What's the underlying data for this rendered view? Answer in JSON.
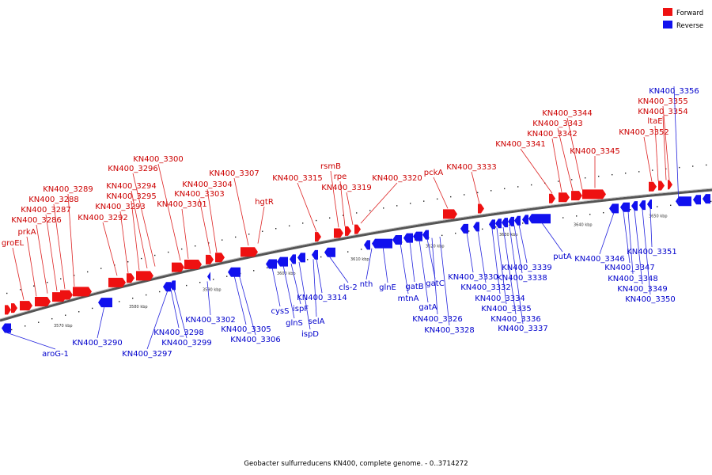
{
  "colors": {
    "forward": "#ee1111",
    "reverse": "#1111ee",
    "forward_text": "#cc0000",
    "reverse_text": "#0000cc",
    "backbone": "#777777"
  },
  "legend": {
    "forward": "Forward",
    "reverse": "Reverse"
  },
  "caption": "Geobacter sulfurreducens KN400, complete genome. - 0..3714272",
  "scale_ticks": [
    "3570 kbp",
    "3580 kbp",
    "3590 kbp",
    "3600 kbp",
    "3610 kbp",
    "3620 kbp",
    "3630 kbp",
    "3640 kbp",
    "3650 kbp"
  ],
  "forward_genes": [
    "groEL",
    "prkA",
    "KN400_3286",
    "KN400_3287",
    "KN400_3288",
    "KN400_3289",
    "KN400_3292",
    "KN400_3293",
    "KN400_3295",
    "KN400_3294",
    "KN400_3296",
    "KN400_3300",
    "KN400_3301",
    "KN400_3303",
    "KN400_3304",
    "KN400_3307",
    "hgtR",
    "KN400_3315",
    "rsmB",
    "rpe",
    "KN400_3319",
    "KN400_3320",
    "pckA",
    "KN400_3333",
    "KN400_3341",
    "KN400_3342",
    "KN400_3343",
    "KN400_3344",
    "KN400_3345",
    "KN400_3352",
    "ltaE",
    "KN400_3354",
    "KN400_3355"
  ],
  "reverse_genes": [
    "aroG-1",
    "KN400_3290",
    "KN400_3297",
    "KN400_3298",
    "KN400_3299",
    "KN400_3302",
    "KN400_3305",
    "KN400_3306",
    "cysS",
    "glnS",
    "ispF",
    "ispD",
    "selA",
    "KN400_3314",
    "cls-2",
    "nth",
    "glnE",
    "mtnA",
    "gatB",
    "gatA",
    "gatC",
    "KN400_3326",
    "KN400_3328",
    "KN400_3330",
    "KN400_3332",
    "KN400_3334",
    "KN400_3335",
    "KN400_3336",
    "KN400_3337",
    "KN400_3338",
    "KN400_3339",
    "putA",
    "KN400_3346",
    "KN400_3347",
    "KN400_3348",
    "KN400_3349",
    "KN400_3350",
    "KN400_3351",
    "KN400_3356"
  ]
}
